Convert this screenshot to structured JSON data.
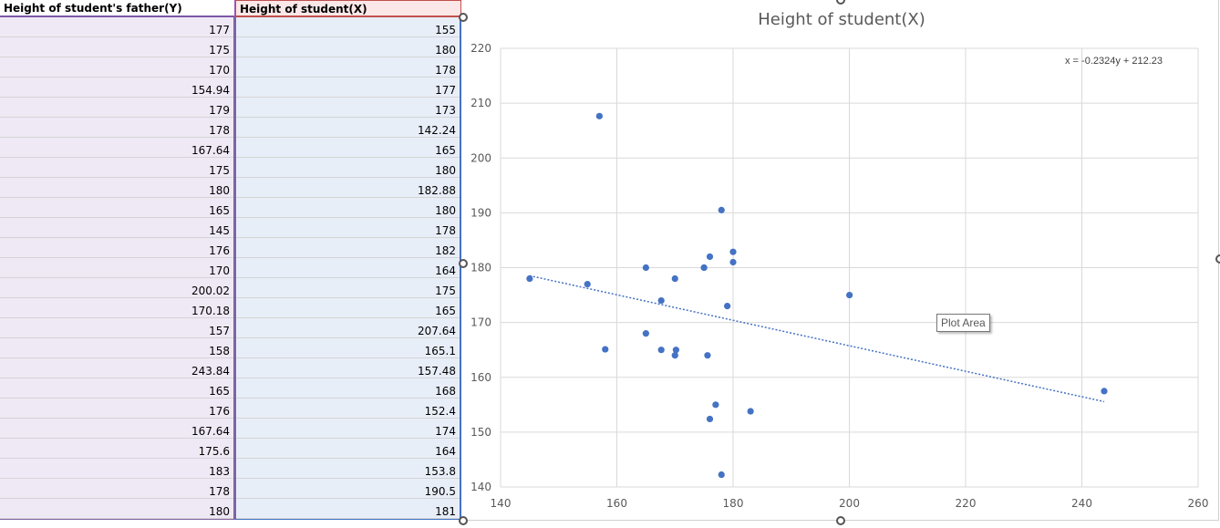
{
  "sheet": {
    "col_y_header": "Height of student's father(Y)",
    "col_x_header": "Height of student(X)",
    "rows": [
      {
        "y": "177",
        "x": "155"
      },
      {
        "y": "175",
        "x": "180"
      },
      {
        "y": "170",
        "x": "178"
      },
      {
        "y": "154.94",
        "x": "177"
      },
      {
        "y": "179",
        "x": "173"
      },
      {
        "y": "178",
        "x": "142.24"
      },
      {
        "y": "167.64",
        "x": "165"
      },
      {
        "y": "175",
        "x": "180"
      },
      {
        "y": "180",
        "x": "182.88"
      },
      {
        "y": "165",
        "x": "180"
      },
      {
        "y": "145",
        "x": "178"
      },
      {
        "y": "176",
        "x": "182"
      },
      {
        "y": "170",
        "x": "164"
      },
      {
        "y": "200.02",
        "x": "175"
      },
      {
        "y": "170.18",
        "x": "165"
      },
      {
        "y": "157",
        "x": "207.64"
      },
      {
        "y": "158",
        "x": "165.1"
      },
      {
        "y": "243.84",
        "x": "157.48"
      },
      {
        "y": "165",
        "x": "168"
      },
      {
        "y": "176",
        "x": "152.4"
      },
      {
        "y": "167.64",
        "x": "174"
      },
      {
        "y": "175.6",
        "x": "164"
      },
      {
        "y": "183",
        "x": "153.8"
      },
      {
        "y": "178",
        "x": "190.5"
      },
      {
        "y": "180",
        "x": "181"
      }
    ]
  },
  "chart_data": {
    "type": "scatter",
    "title": "Height of student(X)",
    "xlim": [
      140,
      260
    ],
    "ylim": [
      140,
      220
    ],
    "xticks": [
      140,
      160,
      180,
      200,
      220,
      240,
      260
    ],
    "yticks": [
      140,
      150,
      160,
      170,
      180,
      190,
      200,
      210,
      220
    ],
    "grid": true,
    "marker_color": "#4472c4",
    "trendline": {
      "label": "x = -0.2324y + 212.23",
      "slope": -0.2324,
      "intercept": 212.23,
      "x_range": [
        145,
        243.84
      ],
      "style": "dotted",
      "color": "#4472c4"
    },
    "points": [
      {
        "x": 177,
        "y": 155
      },
      {
        "x": 175,
        "y": 180
      },
      {
        "x": 170,
        "y": 178
      },
      {
        "x": 154.94,
        "y": 177
      },
      {
        "x": 179,
        "y": 173
      },
      {
        "x": 178,
        "y": 142.24
      },
      {
        "x": 167.64,
        "y": 165
      },
      {
        "x": 175,
        "y": 180
      },
      {
        "x": 180,
        "y": 182.88
      },
      {
        "x": 165,
        "y": 180
      },
      {
        "x": 145,
        "y": 178
      },
      {
        "x": 176,
        "y": 182
      },
      {
        "x": 170,
        "y": 164
      },
      {
        "x": 200.02,
        "y": 175
      },
      {
        "x": 170.18,
        "y": 165
      },
      {
        "x": 157,
        "y": 207.64
      },
      {
        "x": 158,
        "y": 165.1
      },
      {
        "x": 243.84,
        "y": 157.48
      },
      {
        "x": 165,
        "y": 168
      },
      {
        "x": 176,
        "y": 152.4
      },
      {
        "x": 167.64,
        "y": 174
      },
      {
        "x": 175.6,
        "y": 164
      },
      {
        "x": 183,
        "y": 153.8
      },
      {
        "x": 178,
        "y": 190.5
      },
      {
        "x": 180,
        "y": 181
      }
    ]
  },
  "tooltip": {
    "text": "Plot Area"
  }
}
